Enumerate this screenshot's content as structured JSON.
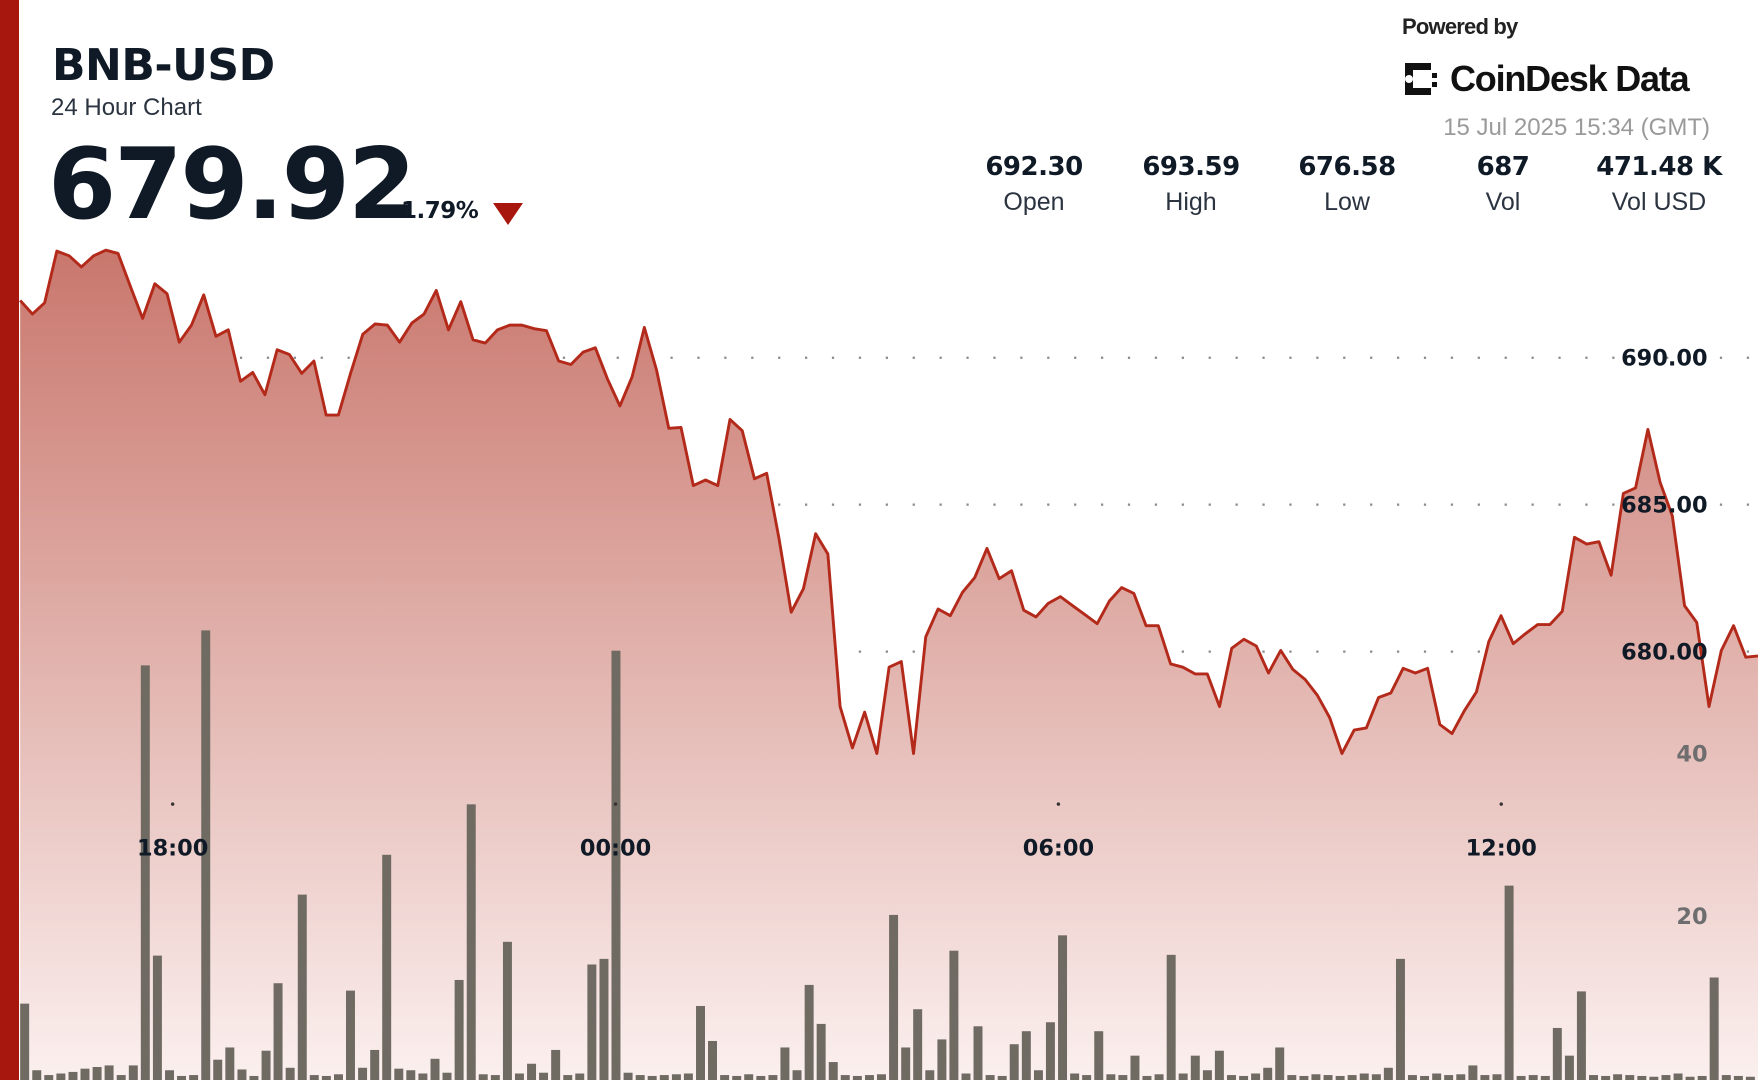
{
  "header": {
    "symbol": "BNB-USD",
    "subtitle": "24 Hour Chart",
    "price": "679.92",
    "change": "-1.79%",
    "change_direction": "down",
    "powered_by": "Powered by",
    "brand": "CoinDesk Data",
    "timestamp": "15 Jul 2025 15:34 (GMT)"
  },
  "stats": [
    {
      "value": "692.30",
      "label": "Open"
    },
    {
      "value": "693.59",
      "label": "High"
    },
    {
      "value": "676.58",
      "label": "Low"
    },
    {
      "value": "687",
      "label": "Vol"
    },
    {
      "value": "471.48 K",
      "label": "Vol USD"
    }
  ],
  "colors": {
    "accent": "#a8170e",
    "line": "#b32a1b",
    "fill_top": "#c9776d",
    "fill_bottom": "#fbf0ef",
    "volume_bar": "#6f6a62",
    "text": "#0f1a26"
  },
  "chart_data": {
    "type": "area",
    "price_axis": {
      "ticks": [
        "690.00",
        "685.00",
        "680.00"
      ],
      "tick_values": [
        690,
        685,
        680
      ]
    },
    "volume_axis": {
      "ticks": [
        "40",
        "20"
      ],
      "tick_values": [
        40,
        20
      ]
    },
    "time_axis": {
      "ticks": [
        "18:00",
        "00:00",
        "06:00",
        "12:00"
      ]
    },
    "grid": true,
    "price": [
      691.95,
      691.49,
      691.87,
      693.63,
      693.47,
      693.09,
      693.47,
      693.66,
      693.55,
      692.44,
      691.34,
      692.52,
      692.18,
      690.53,
      691.11,
      692.14,
      690.73,
      690.95,
      689.2,
      689.5,
      688.74,
      690.27,
      690.11,
      689.47,
      689.89,
      688.05,
      688.05,
      689.47,
      690.8,
      691.15,
      691.11,
      690.53,
      691.18,
      691.49,
      692.29,
      690.95,
      691.91,
      690.61,
      690.5,
      690.95,
      691.11,
      691.11,
      690.99,
      690.92,
      689.89,
      689.77,
      690.19,
      690.34,
      689.27,
      688.36,
      689.35,
      691.03,
      689.58,
      687.6,
      687.63,
      685.65,
      685.84,
      685.65,
      687.9,
      687.52,
      685.88,
      686.07,
      683.85,
      681.34,
      682.14,
      684.01,
      683.32,
      678.13,
      676.72,
      677.94,
      676.53,
      679.47,
      679.66,
      676.53,
      680.5,
      681.45,
      681.22,
      682.02,
      682.52,
      683.51,
      682.48,
      682.75,
      681.41,
      681.18,
      681.64,
      681.87,
      681.56,
      681.26,
      680.95,
      681.72,
      682.18,
      681.98,
      680.88,
      680.88,
      679.58,
      679.47,
      679.24,
      679.24,
      678.13,
      680.11,
      680.42,
      680.19,
      679.27,
      680.04,
      679.39,
      679.05,
      678.51,
      677.75,
      676.53,
      677.33,
      677.4,
      678.44,
      678.59,
      679.43,
      679.27,
      679.43,
      677.52,
      677.21,
      677.98,
      678.63,
      680.34,
      681.22,
      680.27,
      680.61,
      680.92,
      680.92,
      681.37,
      683.89,
      683.66,
      683.74,
      682.6,
      685.38,
      685.57,
      687.56,
      685.76,
      684.62,
      681.56,
      680.99,
      678.13,
      680.04,
      680.88,
      679.81,
      679.85
    ],
    "volume": [
      9.4,
      1.2,
      0.6,
      0.8,
      1.0,
      1.4,
      1.6,
      1.8,
      0.6,
      1.8,
      51,
      15.3,
      1.2,
      0.5,
      0.6,
      55.3,
      2.5,
      4,
      1.3,
      0.5,
      3.6,
      11.9,
      1.5,
      22.8,
      0.6,
      0.5,
      0.7,
      11,
      1.5,
      3.7,
      27.7,
      1.4,
      1.2,
      0.8,
      2.6,
      0.9,
      12.3,
      33.9,
      0.7,
      0.6,
      17,
      0.8,
      2,
      0.9,
      3.7,
      0.6,
      0.8,
      14.2,
      14.9,
      52.8,
      0.9,
      0.6,
      0.5,
      0.6,
      0.7,
      0.8,
      9.1,
      4.8,
      0.6,
      0.5,
      0.7,
      0.5,
      0.6,
      4,
      1.2,
      11.7,
      6.9,
      2.2,
      0.6,
      0.5,
      0.6,
      0.7,
      20.3,
      4,
      8.7,
      1.2,
      5,
      15.9,
      0.8,
      6.6,
      0.6,
      0.5,
      4.4,
      6,
      1.2,
      7.1,
      17.8,
      0.8,
      0.6,
      6,
      0.7,
      0.6,
      3,
      0.5,
      0.7,
      15.4,
      0.8,
      3,
      1.2,
      3.6,
      0.6,
      0.5,
      0.8,
      1.5,
      4,
      0.6,
      0.5,
      0.7,
      0.6,
      0.5,
      0.6,
      0.8,
      0.7,
      1.5,
      14.9,
      0.6,
      0.5,
      0.8,
      0.6,
      0.7,
      1.8,
      0.6,
      0.7,
      23.9,
      0.5,
      0.6,
      0.5,
      6.4,
      3,
      10.9,
      0.6,
      0.5,
      0.7,
      0.6,
      0.5,
      0.4,
      0.6,
      0.8,
      0.4,
      0.5,
      12.6,
      0.6,
      0.5,
      0.4
    ]
  }
}
